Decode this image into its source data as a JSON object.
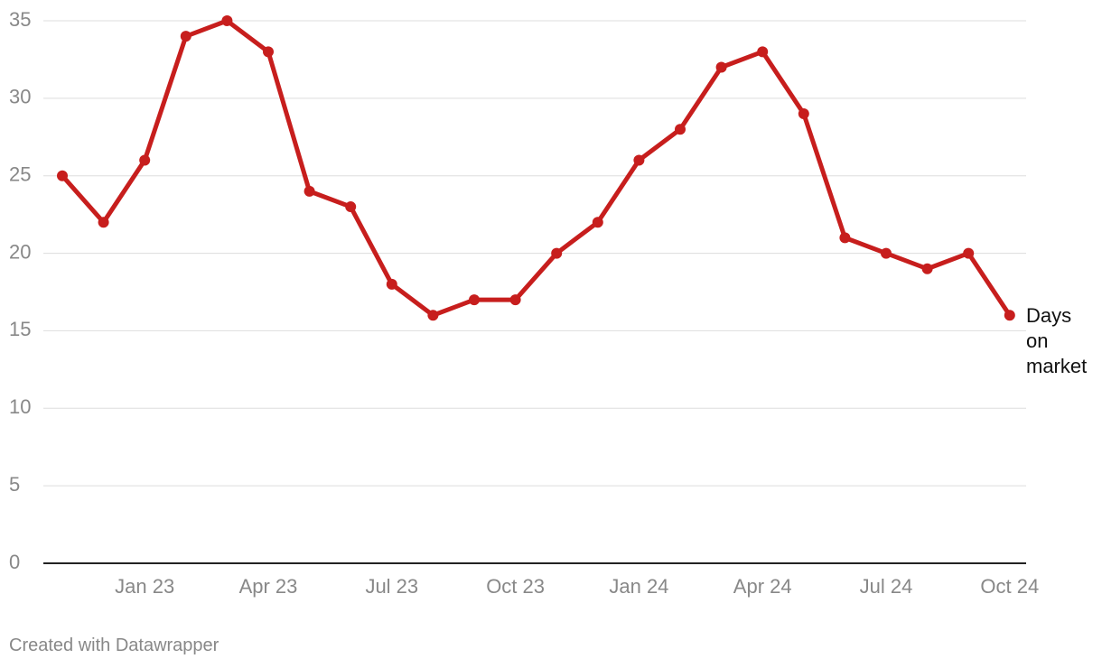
{
  "chart_data": {
    "type": "line",
    "categories": [
      null,
      null,
      "Jan 23",
      null,
      null,
      "Apr 23",
      null,
      null,
      "Jul 23",
      null,
      null,
      "Oct 23",
      null,
      null,
      "Jan 24",
      null,
      null,
      "Apr 24",
      null,
      null,
      "Jul 24",
      null,
      null,
      "Oct 24"
    ],
    "series": [
      {
        "name": "Days on market",
        "color": "#c71e1d",
        "values": [
          25,
          22,
          26,
          34,
          35,
          33,
          24,
          23,
          18,
          16,
          17,
          17,
          20,
          22,
          26,
          28,
          32,
          33,
          29,
          21,
          20,
          19,
          20,
          16
        ]
      }
    ],
    "ylim": [
      0,
      35
    ],
    "yticks": [
      0,
      5,
      10,
      15,
      20,
      25,
      30,
      35
    ],
    "grid": true,
    "footer": "Created with Datawrapper"
  }
}
